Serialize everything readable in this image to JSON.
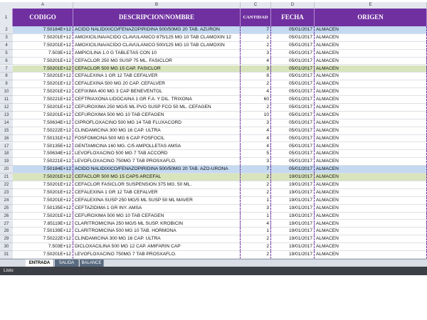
{
  "column_letters": [
    "A",
    "B",
    "C",
    "D",
    "E"
  ],
  "header": {
    "row_number": "1",
    "cells": [
      "CODIGO",
      "DESCRIPCION/NOMBRE",
      "CANTIDAD",
      "FECHA",
      "ORIGEN"
    ]
  },
  "rows": [
    {
      "n": "2",
      "fill": "#c5d9f1",
      "cells": [
        "7.50184E+12",
        "ACIDO NALIDIXICO/FENAZOPIRIDINA 500/50MG  20 TAB. AZURON",
        7,
        "05/01/2017",
        "ALMACEN"
      ]
    },
    {
      "n": "3",
      "cells": [
        "7.50201E+12",
        "AMOXICILINA/ACIDO CLAVULANICO 875/125 MG 10 TAB CLAMOXIN 12",
        2,
        "05/01/2017",
        "ALMACEN"
      ]
    },
    {
      "n": "4",
      "cells": [
        "7.50201E+12",
        "AMOXICILINA/ACIDO CLAVULANICO 500/125 MG 10 TAB CLAMOXIN",
        2,
        "05/01/2017",
        "ALMACEN"
      ]
    },
    {
      "n": "5",
      "cells": [
        "7.503E+12",
        "AMPICILINA 1.0 G TABLETAS CON 10",
        3,
        "05/01/2017",
        "ALMACEN"
      ]
    },
    {
      "n": "6",
      "cells": [
        "7.50201E+12",
        "CEFACLOR 250 MG SUSP 75 ML. FASICLOR",
        4,
        "05/01/2017",
        "ALMACEN"
      ]
    },
    {
      "n": "7",
      "fill": "#d8e4bc",
      "cells": [
        "7.50201E+12",
        "CEFACLOR 500 MG 15 CAP. FASICLOR",
        3,
        "05/01/2017",
        "ALMACEN"
      ]
    },
    {
      "n": "8",
      "cells": [
        "7.50201E+12",
        "CEFALEXINA 1 GR 12 TAB CEFALVER",
        8,
        "05/01/2017",
        "ALMACEN"
      ]
    },
    {
      "n": "9",
      "cells": [
        "7.50201E+12",
        "CEFALEXINA 500 MG 20 CAP. CEFALVER",
        2,
        "05/01/2017",
        "ALMACEN"
      ]
    },
    {
      "n": "10",
      "cells": [
        "7.50201E+12",
        "CEFIXIMA 400 MG 3 CAP  BENEVENTOL",
        4,
        "05/01/2017",
        "ALMACEN"
      ]
    },
    {
      "n": "11",
      "cells": [
        "7.50221E+12",
        "CEFTRIAXONA LIDOCAINA 1 GR F.A. Y DIL. TRIXONA",
        60,
        "05/01/2017",
        "ALMACEN"
      ]
    },
    {
      "n": "12",
      "cells": [
        "7.50201E+12",
        "CEFUROXIMA 250 MG/5 ML PVO SUSP FCO 50 ML. CEFAGEN",
        2,
        "05/01/2017",
        "ALMACEN"
      ]
    },
    {
      "n": "13",
      "cells": [
        "7.50201E+12",
        "CEFUROXIMA 500 MG 10 TAB CEFAGEN",
        10,
        "05/01/2017",
        "ALMACEN"
      ]
    },
    {
      "n": "14",
      "cells": [
        "7.50634E+12",
        "CIPROFLOXACINO 500 MG 14 TAB FLUXACORD",
        3,
        "05/01/2017",
        "ALMACEN"
      ]
    },
    {
      "n": "15",
      "cells": [
        "7.50222E+12",
        "CLINDAMICINA 300 MG 16 CAP. ULTRA",
        4,
        "05/01/2017",
        "ALMACEN"
      ]
    },
    {
      "n": "16",
      "cells": [
        "7.50131E+12",
        "FOSFOMICINA 500 MG 6 CAP FOSFOCIL",
        4,
        "05/01/2017",
        "ALMACEN"
      ]
    },
    {
      "n": "17",
      "cells": [
        "7.50135E+12",
        "GENTAMICINA 160 MG. C/5 AMPOLLETAS AMSA",
        4,
        "05/01/2017",
        "ALMACEN"
      ]
    },
    {
      "n": "18",
      "cells": [
        "7.50634E+12",
        "LEVOFLOXACINO 500 MG 7 TAB ACCORD",
        5,
        "05/01/2017",
        "ALMACEN"
      ]
    },
    {
      "n": "19",
      "cells": [
        "7.50221E+12",
        "LEVOFLOXACINO 750MG 7 TAB PROSXAFLO.",
        3,
        "05/01/2017",
        "ALMACEN"
      ]
    },
    {
      "n": "20",
      "fill": "#c5d9f1",
      "cells": [
        "7.50184E+12",
        "ACIDO NALIDIXICO/FENAZOPIRIDINA 500/50MG  20 TAB. AZO-URONA",
        7,
        "05/01/2017",
        "ALMACEN"
      ]
    },
    {
      "n": "21",
      "fill": "#d8e4bc",
      "cells": [
        "7.50201E+12",
        "CEFACLOR 500 MG 15 CAPS ARCEFAL",
        2,
        "19/01/2017",
        "ALMACEN"
      ]
    },
    {
      "n": "22",
      "cells": [
        "7.50201E+12",
        "CEFACLOR FASICLOR SUSPENSION 375 MG. 50 ML.",
        2,
        "19/01/2017",
        "ALMACEN"
      ]
    },
    {
      "n": "23",
      "cells": [
        "7.50201E+12",
        "CEFALEXINA 1 GR 12 TAB CEFALVER",
        2,
        "19/01/2017",
        "ALMACEN"
      ]
    },
    {
      "n": "24",
      "cells": [
        "7.50201E+12",
        "CEFALEXINA SUSP 250 MG/5 ML SUSP 50 ML MAVER",
        1,
        "19/01/2017",
        "ALMACEN"
      ]
    },
    {
      "n": "25",
      "cells": [
        "7.50135E+12",
        "CEFTAZIDIMA 1 GR INY. AMSA",
        3,
        "19/01/2017",
        "ALMACEN"
      ]
    },
    {
      "n": "26",
      "cells": [
        "7.50201E+12",
        "CEFUROXIMA 500 MG 10 TAB CEFAGEN",
        1,
        "19/01/2017",
        "ALMACEN"
      ]
    },
    {
      "n": "27",
      "cells": [
        "7.85119E+12",
        "CLARITROMICINA 250 MG/5 ML SUSP. KROBICIN",
        4,
        "19/01/2017",
        "ALMACEN"
      ]
    },
    {
      "n": "28",
      "cells": [
        "7.50139E+12",
        "CLARITROMICINA 500 MG 10 TAB. HORMONA",
        1,
        "19/01/2017",
        "ALMACEN"
      ]
    },
    {
      "n": "29",
      "cells": [
        "7.50222E+12",
        "CLINDAMICINA 300 MG 16 CAP. ULTRA",
        2,
        "19/01/2017",
        "ALMACEN"
      ]
    },
    {
      "n": "30",
      "cells": [
        "7.503E+12",
        "DICLOXACILINA 500 MG 12 CAP. AMIFARIN CAP",
        2,
        "19/01/2017",
        "ALMACEN"
      ]
    },
    {
      "n": "31",
      "cells": [
        "7.50201E+12",
        "LEVOFLOXACINO 750MG 7 TAB PROSXAFLO.",
        2,
        "19/01/2017",
        "ALMACEN"
      ]
    }
  ],
  "tabs": [
    "ENTRADA",
    "SALIDA",
    "BALANCE"
  ],
  "status": "Listo"
}
